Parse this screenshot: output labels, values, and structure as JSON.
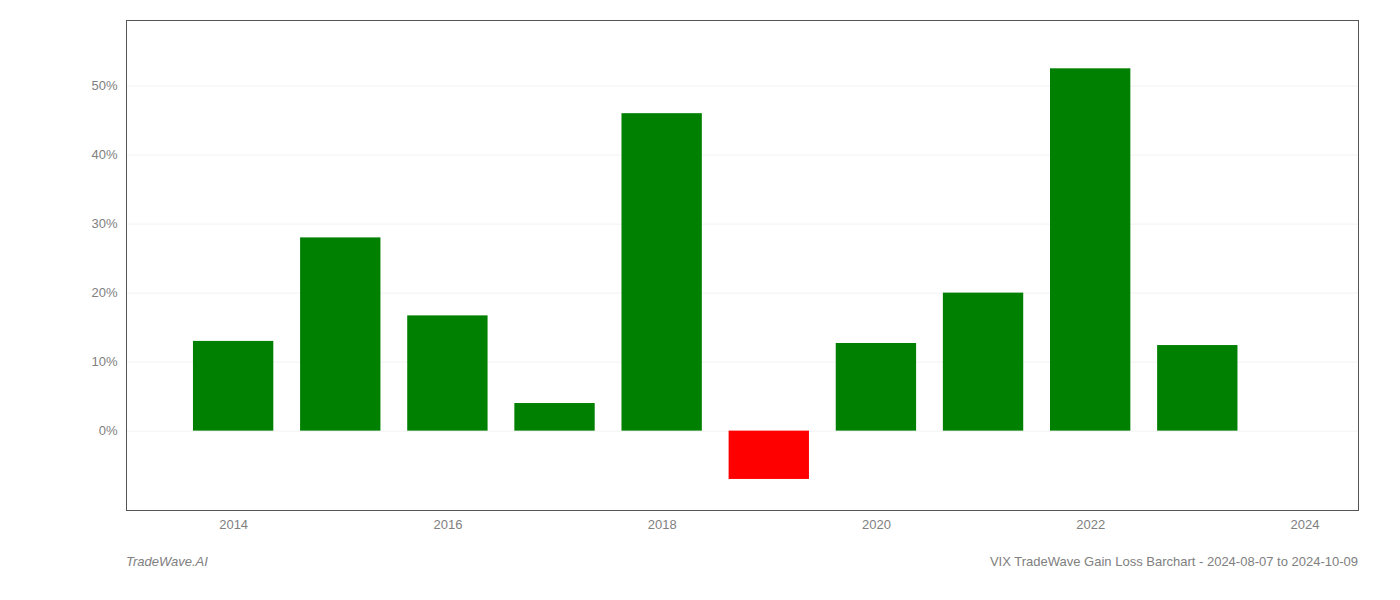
{
  "chart_data": {
    "type": "bar",
    "x": [
      2014,
      2015,
      2016,
      2017,
      2018,
      2019,
      2020,
      2021,
      2022,
      2023
    ],
    "values": [
      0.13,
      0.28,
      0.167,
      0.04,
      0.46,
      -0.07,
      0.127,
      0.2,
      0.525,
      0.124
    ],
    "colors": [
      "#008000",
      "#008000",
      "#008000",
      "#008000",
      "#008000",
      "#ff0000",
      "#008000",
      "#008000",
      "#008000",
      "#008000"
    ],
    "xlim": [
      2013.0,
      2024.5
    ],
    "xticks": [
      2014,
      2016,
      2018,
      2020,
      2022,
      2024
    ],
    "ylim": [
      -0.115,
      0.595
    ],
    "yticks": [
      {
        "value": 0.0,
        "label": "0%"
      },
      {
        "value": 0.1,
        "label": "10%"
      },
      {
        "value": 0.2,
        "label": "20%"
      },
      {
        "value": 0.3,
        "label": "30%"
      },
      {
        "value": 0.4,
        "label": "40%"
      },
      {
        "value": 0.5,
        "label": "50%"
      }
    ],
    "grid": true,
    "annotations": [
      "TradeWave.AI",
      "VIX TradeWave Gain Loss Barchart - 2024-08-07 to 2024-10-09"
    ]
  }
}
